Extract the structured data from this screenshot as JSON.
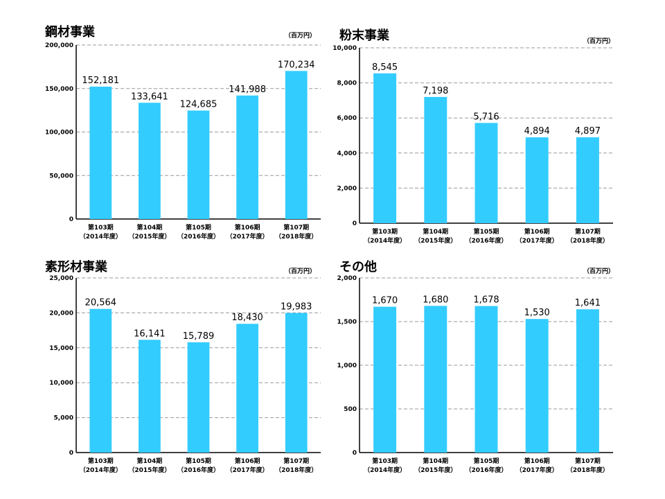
{
  "chart_data": [
    {
      "type": "bar",
      "title": "鋼材事業",
      "unit": "（百万円）",
      "categories": [
        [
          "第103期",
          "（2014年度）"
        ],
        [
          "第104期",
          "（2015年度）"
        ],
        [
          "第105期",
          "（2016年度）"
        ],
        [
          "第106期",
          "（2017年度）"
        ],
        [
          "第107期",
          "（2018年度）"
        ]
      ],
      "values": [
        152181,
        133641,
        124685,
        141988,
        170234
      ],
      "value_labels": [
        "152,181",
        "133,641",
        "124,685",
        "141,988",
        "170,234"
      ],
      "yticks": [
        0,
        50000,
        100000,
        150000,
        200000
      ],
      "ytick_labels": [
        "0",
        "50,000",
        "100,000",
        "150,000",
        "200,000"
      ],
      "ylim": [
        0,
        200000
      ],
      "bar_color": "#33ccff",
      "grid": true
    },
    {
      "type": "bar",
      "title": "粉末事業",
      "unit": "（百万円）",
      "categories": [
        [
          "第103期",
          "（2014年度）"
        ],
        [
          "第104期",
          "（2015年度）"
        ],
        [
          "第105期",
          "（2016年度）"
        ],
        [
          "第106期",
          "（2017年度）"
        ],
        [
          "第107期",
          "（2018年度）"
        ]
      ],
      "values": [
        8545,
        7198,
        5716,
        4894,
        4897
      ],
      "value_labels": [
        "8,545",
        "7,198",
        "5,716",
        "4,894",
        "4,897"
      ],
      "yticks": [
        0,
        2000,
        4000,
        6000,
        8000,
        10000
      ],
      "ytick_labels": [
        "0",
        "2,000",
        "4,000",
        "6,000",
        "8,000",
        "10,000"
      ],
      "ylim": [
        0,
        10000
      ],
      "bar_color": "#33ccff",
      "grid": true
    },
    {
      "type": "bar",
      "title": "素形材事業",
      "unit": "（百万円）",
      "categories": [
        [
          "第103期",
          "（2014年度）"
        ],
        [
          "第104期",
          "（2015年度）"
        ],
        [
          "第105期",
          "（2016年度）"
        ],
        [
          "第106期",
          "（2017年度）"
        ],
        [
          "第107期",
          "（2018年度）"
        ]
      ],
      "values": [
        20564,
        16141,
        15789,
        18430,
        19983
      ],
      "value_labels": [
        "20,564",
        "16,141",
        "15,789",
        "18,430",
        "19,983"
      ],
      "yticks": [
        0,
        5000,
        10000,
        15000,
        20000,
        25000
      ],
      "ytick_labels": [
        "0",
        "5,000",
        "10,000",
        "15,000",
        "20,000",
        "25,000"
      ],
      "ylim": [
        0,
        25000
      ],
      "bar_color": "#33ccff",
      "grid": true
    },
    {
      "type": "bar",
      "title": "その他",
      "unit": "（百万円）",
      "categories": [
        [
          "第103期",
          "（2014年度）"
        ],
        [
          "第104期",
          "（2015年度）"
        ],
        [
          "第105期",
          "（2016年度）"
        ],
        [
          "第106期",
          "（2017年度）"
        ],
        [
          "第107期",
          "（2018年度）"
        ]
      ],
      "values": [
        1670,
        1680,
        1678,
        1530,
        1641
      ],
      "value_labels": [
        "1,670",
        "1,680",
        "1,678",
        "1,530",
        "1,641"
      ],
      "yticks": [
        0,
        500,
        1000,
        1500,
        2000
      ],
      "ytick_labels": [
        "0",
        "500",
        "1,000",
        "1,500",
        "2,000"
      ],
      "ylim": [
        0,
        2000
      ],
      "bar_color": "#33ccff",
      "grid": true
    }
  ]
}
